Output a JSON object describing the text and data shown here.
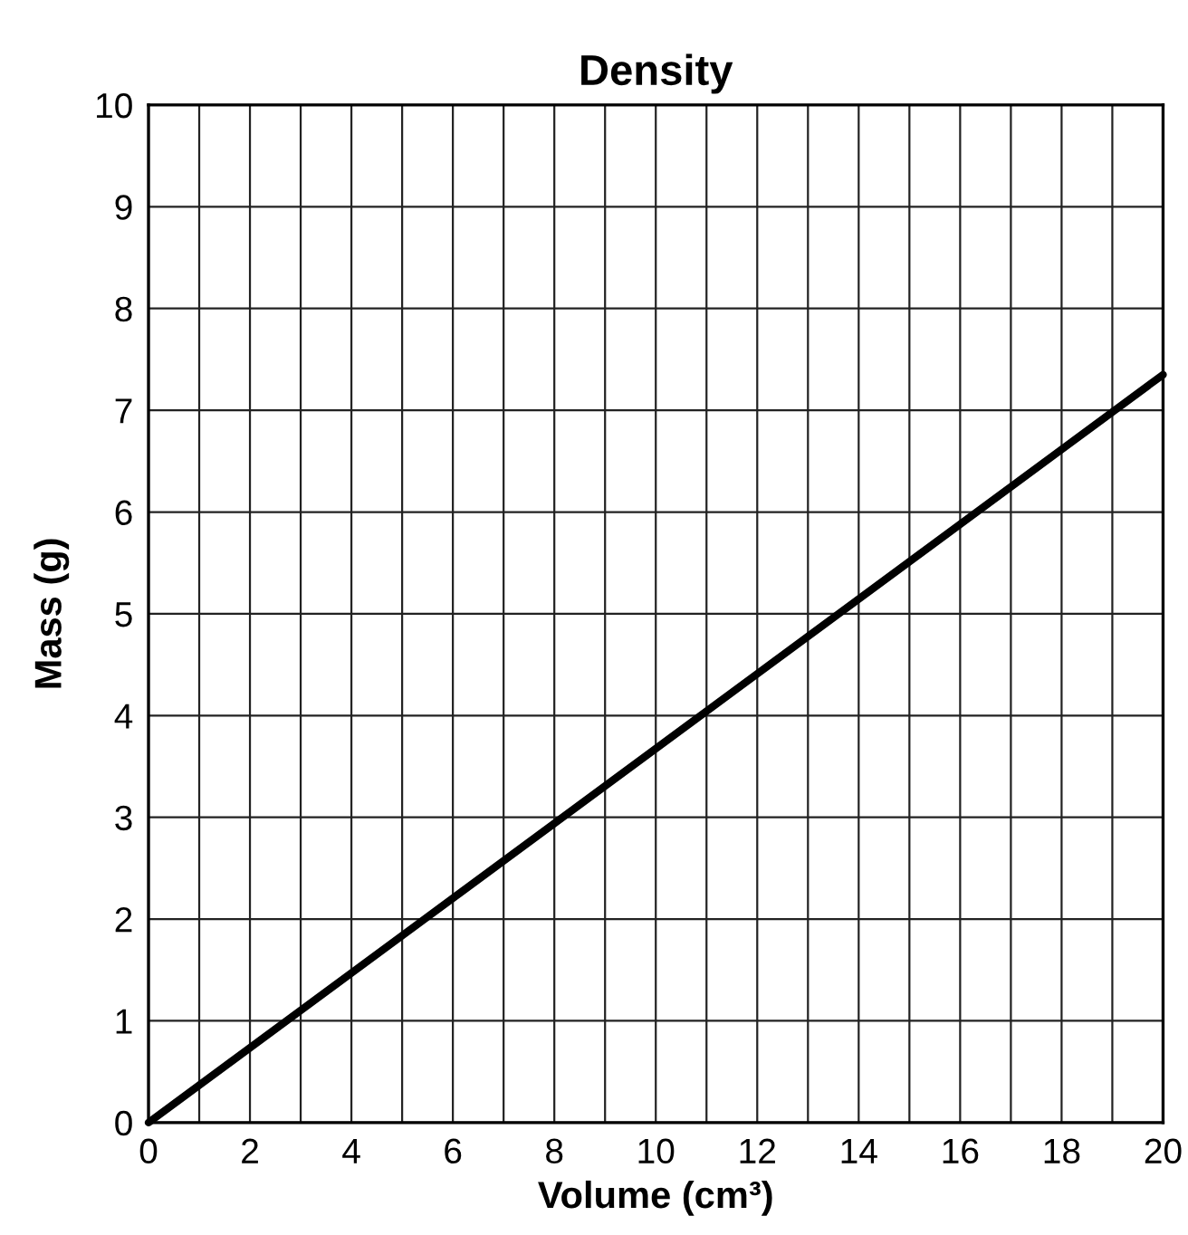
{
  "chart_data": {
    "type": "line",
    "title": "Density",
    "xlabel": "Volume (cm³)",
    "ylabel": "Mass (g)",
    "x": [
      0,
      20
    ],
    "series": [
      {
        "color": "#000000",
        "values": [
          0,
          7.35
        ]
      }
    ],
    "xlim": [
      0,
      20
    ],
    "ylim": [
      0,
      10
    ],
    "xticks": [
      0,
      {
        "value": 1,
        "label": null
      },
      2,
      {
        "value": 3,
        "label": null
      },
      4,
      {
        "value": 5,
        "label": null
      },
      6,
      {
        "value": 7,
        "label": null
      },
      8,
      {
        "value": 9,
        "label": null
      },
      10,
      {
        "value": 11,
        "label": null
      },
      12,
      {
        "value": 13,
        "label": null
      },
      14,
      {
        "value": 15,
        "label": null
      },
      16,
      {
        "value": 17,
        "label": null
      },
      18,
      {
        "value": 19,
        "label": null
      },
      20
    ],
    "yticks": [
      0,
      1,
      2,
      3,
      4,
      5,
      6,
      7,
      8,
      9,
      10
    ],
    "grid": true,
    "marker": "none",
    "line_style": "solid",
    "legend": false
  }
}
